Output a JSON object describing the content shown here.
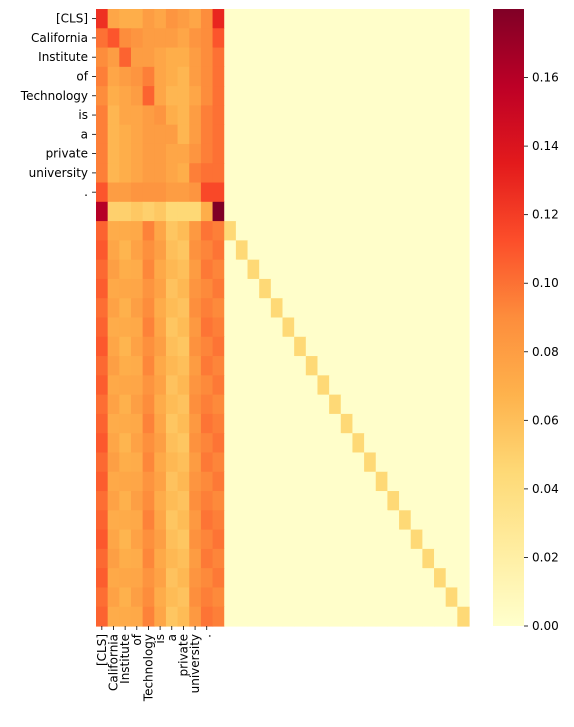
{
  "chart_data": {
    "type": "heatmap",
    "title": "",
    "xlabel": "",
    "ylabel": "",
    "row_labels": [
      "[CLS]",
      "California",
      "Institute",
      "of",
      "Technology",
      "is",
      "a",
      "private",
      "university",
      "."
    ],
    "col_labels": [
      "[CLS]",
      "California",
      "Institute",
      "of",
      "Technology",
      "is",
      "a",
      "private",
      "university",
      "."
    ],
    "n_rows": 32,
    "n_cols": 32,
    "colormap": "YlOrRd",
    "colorbar": {
      "ticks": [
        "0.00",
        "0.02",
        "0.04",
        "0.06",
        "0.08",
        "0.10",
        "0.12",
        "0.14",
        "0.16"
      ],
      "min": 0.0,
      "max": 0.18
    },
    "background_value": 0.001,
    "diagonal_value": 0.045,
    "diagonal_start_row": 11,
    "diagonal_start_col": 11,
    "values_first_11_rows": [
      [
        0.125,
        0.075,
        0.07,
        0.07,
        0.08,
        0.075,
        0.085,
        0.08,
        0.075,
        0.09,
        0.13
      ],
      [
        0.1,
        0.11,
        0.09,
        0.085,
        0.08,
        0.08,
        0.08,
        0.075,
        0.085,
        0.09,
        0.11
      ],
      [
        0.09,
        0.08,
        0.105,
        0.08,
        0.08,
        0.075,
        0.07,
        0.07,
        0.08,
        0.09,
        0.1
      ],
      [
        0.095,
        0.075,
        0.08,
        0.085,
        0.095,
        0.075,
        0.07,
        0.065,
        0.08,
        0.09,
        0.1
      ],
      [
        0.09,
        0.07,
        0.075,
        0.08,
        0.105,
        0.075,
        0.065,
        0.065,
        0.075,
        0.09,
        0.1
      ],
      [
        0.095,
        0.065,
        0.075,
        0.075,
        0.08,
        0.085,
        0.07,
        0.065,
        0.08,
        0.095,
        0.1
      ],
      [
        0.095,
        0.065,
        0.07,
        0.075,
        0.08,
        0.08,
        0.08,
        0.065,
        0.08,
        0.095,
        0.1
      ],
      [
        0.095,
        0.065,
        0.07,
        0.075,
        0.08,
        0.08,
        0.075,
        0.075,
        0.085,
        0.095,
        0.1
      ],
      [
        0.095,
        0.065,
        0.07,
        0.075,
        0.08,
        0.08,
        0.075,
        0.07,
        0.095,
        0.1,
        0.1
      ],
      [
        0.11,
        0.08,
        0.08,
        0.085,
        0.085,
        0.085,
        0.08,
        0.08,
        0.085,
        0.115,
        0.115
      ],
      [
        0.16,
        0.05,
        0.05,
        0.055,
        0.05,
        0.055,
        0.045,
        0.045,
        0.045,
        0.07,
        0.18
      ]
    ],
    "values_lower_rows_cols_0_to_10": [
      0.105,
      0.075,
      0.07,
      0.075,
      0.09,
      0.075,
      0.06,
      0.06,
      0.085,
      0.095,
      0.095
    ]
  }
}
